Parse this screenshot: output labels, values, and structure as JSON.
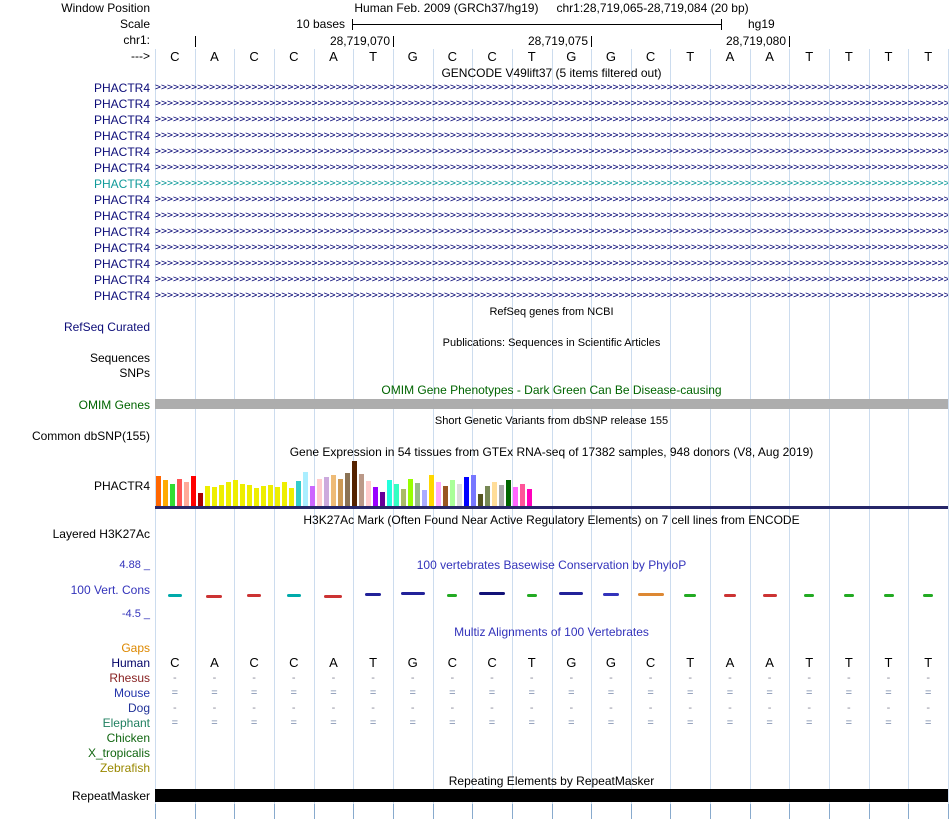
{
  "colors": {
    "track_blue": "#0C0C78",
    "teal": "#109A9A",
    "omim_green": "#006400",
    "cons_blue": "#3333BB",
    "guide": "#CCDCEE",
    "tick_blue": "#88AACD"
  },
  "header": {
    "window_position_label": "Window Position",
    "assembly": "Human Feb. 2009 (GRCh37/hg19)",
    "position": "chr1:28,719,065-28,719,084 (20 bp)",
    "scale_label": "Scale",
    "scale_value": "10 bases",
    "assembly_tag": "hg19",
    "chrom_label": "chr1:",
    "direction_label": "--->",
    "ruler_ticks": [
      {
        "n": 1,
        "label": ""
      },
      {
        "n": 6,
        "label": "28,719,070"
      },
      {
        "n": 11,
        "label": "28,719,075"
      },
      {
        "n": 16,
        "label": "28,719,080"
      }
    ]
  },
  "sequence": [
    "C",
    "A",
    "C",
    "C",
    "A",
    "T",
    "G",
    "C",
    "C",
    "T",
    "G",
    "G",
    "C",
    "T",
    "A",
    "A",
    "T",
    "T",
    "T",
    "T"
  ],
  "gencode": {
    "title": "GENCODE V49lift37 (5 items filtered out)",
    "arrow_char": ">",
    "transcripts": [
      {
        "name": "PHACTR4",
        "color": "#0C0C78"
      },
      {
        "name": "PHACTR4",
        "color": "#0C0C78"
      },
      {
        "name": "PHACTR4",
        "color": "#0C0C78"
      },
      {
        "name": "PHACTR4",
        "color": "#0C0C78"
      },
      {
        "name": "PHACTR4",
        "color": "#0C0C78"
      },
      {
        "name": "PHACTR4",
        "color": "#0C0C78"
      },
      {
        "name": "PHACTR4",
        "color": "#109A9A"
      },
      {
        "name": "PHACTR4",
        "color": "#0C0C78"
      },
      {
        "name": "PHACTR4",
        "color": "#0C0C78"
      },
      {
        "name": "PHACTR4",
        "color": "#0C0C78"
      },
      {
        "name": "PHACTR4",
        "color": "#0C0C78"
      },
      {
        "name": "PHACTR4",
        "color": "#0C0C78"
      },
      {
        "name": "PHACTR4",
        "color": "#0C0C78"
      },
      {
        "name": "PHACTR4",
        "color": "#0C0C78"
      }
    ]
  },
  "refseq": {
    "title": "RefSeq genes from NCBI",
    "label": "RefSeq Curated"
  },
  "publications": {
    "title": "Publications: Sequences in Scientific Articles",
    "rows": [
      "Sequences",
      "SNPs"
    ]
  },
  "omim": {
    "title": "OMIM Gene Phenotypes - Dark Green Can Be Disease-causing",
    "label": "OMIM Genes",
    "bar_color": "#ADADAD"
  },
  "dbsnp": {
    "title": "Short Genetic Variants from dbSNP release 155",
    "label": "Common dbSNP(155)"
  },
  "gtex": {
    "title": "Gene Expression in 54 tissues from GTEx RNA-seq of 17382 samples, 948 donors (V8, Aug 2019)",
    "gene": "PHACTR4",
    "model_color": "#262668",
    "bars": [
      {
        "c": "#FF6600",
        "h": 30
      },
      {
        "c": "#FFAA00",
        "h": 26
      },
      {
        "c": "#33DD33",
        "h": 22
      },
      {
        "c": "#FF5555",
        "h": 27
      },
      {
        "c": "#FFAA99",
        "h": 24
      },
      {
        "c": "#FF0000",
        "h": 30
      },
      {
        "c": "#AA0000",
        "h": 13
      },
      {
        "c": "#EEEE00",
        "h": 20
      },
      {
        "c": "#EEEE00",
        "h": 19
      },
      {
        "c": "#EEEE00",
        "h": 21
      },
      {
        "c": "#EEEE00",
        "h": 24
      },
      {
        "c": "#EEEE00",
        "h": 26
      },
      {
        "c": "#EEEE00",
        "h": 22
      },
      {
        "c": "#EEEE00",
        "h": 21
      },
      {
        "c": "#EEEE00",
        "h": 18
      },
      {
        "c": "#EEEE00",
        "h": 20
      },
      {
        "c": "#EEEE00",
        "h": 21
      },
      {
        "c": "#EEEE00",
        "h": 19
      },
      {
        "c": "#EEEE00",
        "h": 24
      },
      {
        "c": "#EEEE00",
        "h": 18
      },
      {
        "c": "#33CCCC",
        "h": 25
      },
      {
        "c": "#AAEEFF",
        "h": 34
      },
      {
        "c": "#CC66FF",
        "h": 20
      },
      {
        "c": "#FFCCCC",
        "h": 27
      },
      {
        "c": "#CCAADD",
        "h": 29
      },
      {
        "c": "#EEBB77",
        "h": 31
      },
      {
        "c": "#CC9955",
        "h": 27
      },
      {
        "c": "#8B7355",
        "h": 33
      },
      {
        "c": "#552200",
        "h": 45
      },
      {
        "c": "#BB9988",
        "h": 32
      },
      {
        "c": "#FFCCCC",
        "h": 25
      },
      {
        "c": "#9900FF",
        "h": 19
      },
      {
        "c": "#660099",
        "h": 14
      },
      {
        "c": "#22FFDD",
        "h": 26
      },
      {
        "c": "#33FFC2",
        "h": 22
      },
      {
        "c": "#AABB66",
        "h": 17
      },
      {
        "c": "#99FF00",
        "h": 27
      },
      {
        "c": "#99BB88",
        "h": 23
      },
      {
        "c": "#AAAAFF",
        "h": 16
      },
      {
        "c": "#FFD700",
        "h": 31
      },
      {
        "c": "#FFAAFF",
        "h": 24
      },
      {
        "c": "#995522",
        "h": 20
      },
      {
        "c": "#AAFF99",
        "h": 26
      },
      {
        "c": "#DDDDDD",
        "h": 22
      },
      {
        "c": "#0000FF",
        "h": 29
      },
      {
        "c": "#7777FF",
        "h": 31
      },
      {
        "c": "#555522",
        "h": 12
      },
      {
        "c": "#778855",
        "h": 20
      },
      {
        "c": "#FFDD99",
        "h": 24
      },
      {
        "c": "#AAAAAA",
        "h": 21
      },
      {
        "c": "#006600",
        "h": 26
      },
      {
        "c": "#FF66FF",
        "h": 19
      },
      {
        "c": "#FF5599",
        "h": 22
      },
      {
        "c": "#FF00BB",
        "h": 17
      }
    ]
  },
  "h3k27ac": {
    "title": "H3K27Ac Mark (Often Found Near Active Regulatory Elements) on 7 cell lines from ENCODE",
    "label": "Layered H3K27Ac"
  },
  "conservation": {
    "title": "100 vertebrates Basewise Conservation by PhyloP",
    "label": "100 Vert. Cons",
    "max_label": "4.88 _",
    "min_label": "-4.5 _",
    "marks": [
      {
        "c": "#00AAAA",
        "w": 14,
        "d": 2
      },
      {
        "c": "#CC3333",
        "w": 16,
        "d": 3
      },
      {
        "c": "#CC3333",
        "w": 14,
        "d": 2
      },
      {
        "c": "#00AAAA",
        "w": 14,
        "d": 2
      },
      {
        "c": "#CC3333",
        "w": 18,
        "d": 3
      },
      {
        "c": "#222299",
        "w": 16,
        "d": 1
      },
      {
        "c": "#222299",
        "w": 24,
        "d": 0
      },
      {
        "c": "#22AA22",
        "w": 10,
        "d": 2
      },
      {
        "c": "#111177",
        "w": 26,
        "d": 0
      },
      {
        "c": "#22AA22",
        "w": 10,
        "d": 2
      },
      {
        "c": "#222299",
        "w": 24,
        "d": 0
      },
      {
        "c": "#3333BB",
        "w": 16,
        "d": 1
      },
      {
        "c": "#DD8833",
        "w": 26,
        "d": 1
      },
      {
        "c": "#22AA22",
        "w": 12,
        "d": 2
      },
      {
        "c": "#CC3333",
        "w": 12,
        "d": 2
      },
      {
        "c": "#CC3333",
        "w": 14,
        "d": 2
      },
      {
        "c": "#22AA22",
        "w": 10,
        "d": 2
      },
      {
        "c": "#22AA22",
        "w": 10,
        "d": 2
      },
      {
        "c": "#22AA22",
        "w": 10,
        "d": 2
      },
      {
        "c": "#22AA22",
        "w": 10,
        "d": 2
      }
    ]
  },
  "multiz": {
    "title": "Multiz Alignments of 100 Vertebrates",
    "rows": [
      {
        "label": "Gaps",
        "color": "#DD8800",
        "type": "none"
      },
      {
        "label": "Human",
        "color": "#000066",
        "type": "seq",
        "mark_color": "#000000"
      },
      {
        "label": "Rhesus",
        "color": "#882222",
        "type": "char",
        "char": "-",
        "mark_color": "#8A8A99"
      },
      {
        "label": "Mouse",
        "color": "#2233AA",
        "type": "char",
        "char": "=",
        "mark_color": "#7788AA"
      },
      {
        "label": "Dog",
        "color": "#223399",
        "type": "char",
        "char": "-",
        "mark_color": "#8A8A99"
      },
      {
        "label": "Elephant",
        "color": "#208060",
        "type": "char",
        "char": "=",
        "mark_color": "#7788AA"
      },
      {
        "label": "Chicken",
        "color": "#116611",
        "type": "none"
      },
      {
        "label": "X_tropicalis",
        "color": "#116611",
        "type": "none"
      },
      {
        "label": "Zebrafish",
        "color": "#998800",
        "type": "none"
      }
    ]
  },
  "repeatmasker": {
    "title": "Repeating Elements by RepeatMasker",
    "label": "RepeatMasker",
    "bar_color": "#000000"
  }
}
